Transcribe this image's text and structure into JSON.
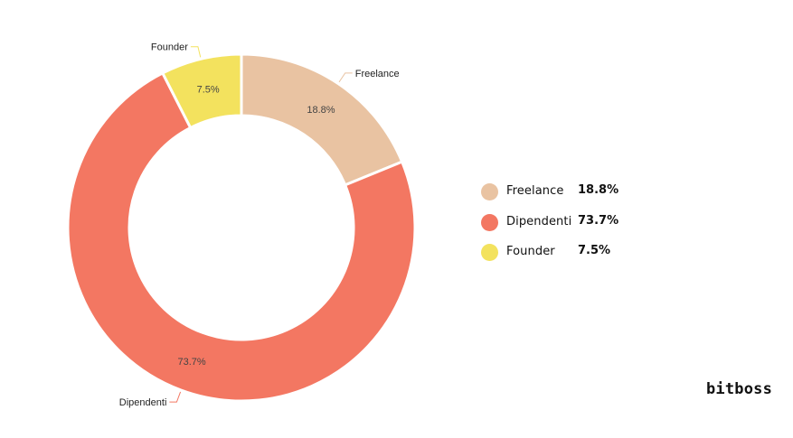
{
  "chart_data": {
    "type": "pie",
    "variant": "donut",
    "categories": [
      "Freelance",
      "Dipendenti",
      "Founder"
    ],
    "values": [
      18.8,
      73.7,
      7.5
    ],
    "value_labels": [
      "18.8%",
      "73.7%",
      "7.5%"
    ],
    "colors": [
      "#e9c3a2",
      "#f37762",
      "#f3e25e"
    ],
    "legend_position": "right",
    "title": ""
  },
  "legend": {
    "items": [
      {
        "name": "Freelance",
        "value": "18.8%",
        "color": "#e9c3a2"
      },
      {
        "name": "Dipendenti",
        "value": "73.7%",
        "color": "#f37762"
      },
      {
        "name": "Founder",
        "value": "7.5%",
        "color": "#f3e25e"
      }
    ]
  },
  "brand": {
    "text": "bitboss"
  }
}
